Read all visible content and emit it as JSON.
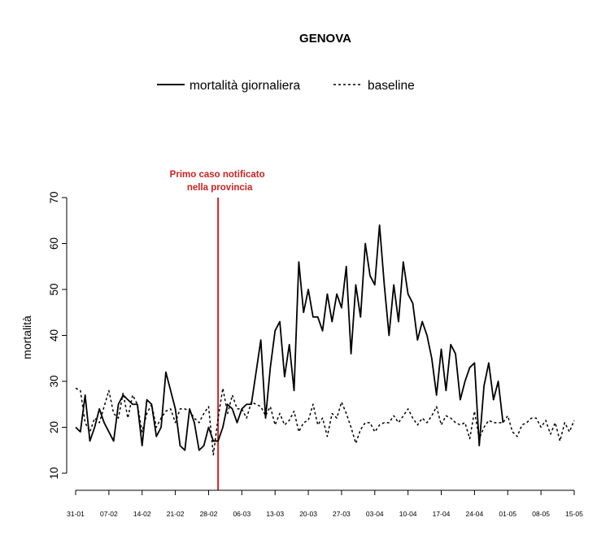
{
  "chart_data": {
    "type": "line",
    "title": "GENOVA",
    "ylabel": "mortalità",
    "xlabel": "",
    "ylim": [
      10,
      70
    ],
    "yticks": [
      10,
      20,
      30,
      40,
      50,
      60,
      70
    ],
    "x_start": "31-01",
    "x_end": "15-05",
    "x_ticks": [
      "31-01",
      "07-02",
      "14-02",
      "21-02",
      "28-02",
      "06-03",
      "13-03",
      "20-03",
      "27-03",
      "03-04",
      "10-04",
      "17-04",
      "24-04",
      "01-05",
      "08-05",
      "15-05"
    ],
    "grid": false,
    "legend_position": "top-center",
    "series": [
      {
        "name": "mortalità giornaliera",
        "style": "solid",
        "color": "#000000",
        "values": [
          20,
          19,
          27,
          17,
          20,
          24,
          21,
          19,
          17,
          25,
          27,
          26,
          25,
          25,
          16,
          26,
          25,
          18,
          20,
          32,
          28,
          24,
          16,
          15,
          24,
          21,
          15,
          16,
          20,
          17,
          17,
          20,
          25,
          24,
          21,
          24,
          25,
          25,
          32,
          39,
          22,
          33,
          41,
          43,
          31,
          38,
          28,
          56,
          45,
          50,
          44,
          44,
          41,
          49,
          43,
          49,
          46,
          55,
          36,
          51,
          44,
          60,
          53,
          51,
          64,
          51,
          40,
          51,
          43,
          56,
          49,
          47,
          39,
          43,
          40,
          35,
          27,
          37,
          28,
          38,
          36,
          26,
          30,
          33,
          34,
          16,
          29,
          34,
          26,
          30,
          21
        ]
      },
      {
        "name": "baseline",
        "style": "dashed",
        "color": "#000000",
        "values": [
          28.5,
          28,
          21,
          19,
          22,
          21,
          24.5,
          28,
          23,
          22,
          27.5,
          22,
          27,
          25,
          19,
          23,
          25,
          20,
          22,
          23.5,
          24,
          21,
          24,
          24,
          23.5,
          22,
          21,
          23,
          24.5,
          14,
          22,
          28.5,
          23,
          27,
          24,
          24,
          22,
          25.5,
          25,
          24.5,
          22.5,
          24.5,
          20.5,
          23,
          20.5,
          21.5,
          23.5,
          19,
          21,
          21.5,
          25,
          20.5,
          22,
          18,
          23,
          22,
          25.5,
          23,
          20,
          16.5,
          19.5,
          21,
          21,
          19,
          20.5,
          21,
          21,
          22.5,
          21,
          22.5,
          24,
          22,
          20.5,
          22,
          21,
          22.5,
          24.5,
          20.5,
          22.5,
          22,
          21,
          20.5,
          21,
          17.5,
          23.5,
          17.5,
          20,
          21.5,
          21,
          21,
          21,
          22.5,
          19,
          18,
          20.5,
          21,
          22,
          22,
          20,
          21.5,
          18.5,
          21,
          17,
          21,
          19,
          21.5
        ]
      }
    ],
    "annotation": {
      "text_line1": "Primo caso notificato",
      "text_line2": "nella provincia",
      "x_date": "01-03",
      "color": "#cc2222"
    }
  }
}
